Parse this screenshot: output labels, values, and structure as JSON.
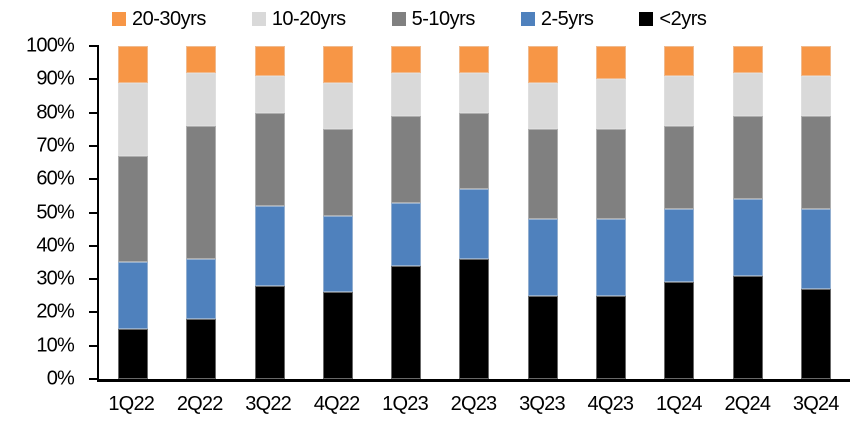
{
  "chart_data": {
    "type": "bar",
    "variant": "stacked-100-percent-column",
    "title": "",
    "xlabel": "",
    "ylabel": "",
    "ylim": [
      0,
      100
    ],
    "grid": false,
    "legend_position": "top",
    "background_color": "#ffffff",
    "axis_color": "#000000",
    "categories": [
      "1Q22",
      "2Q22",
      "3Q22",
      "4Q22",
      "1Q23",
      "2Q23",
      "3Q23",
      "4Q23",
      "1Q24",
      "2Q24",
      "3Q24"
    ],
    "series": [
      {
        "name": "<2yrs",
        "color": "#000000",
        "values": [
          15,
          18,
          28,
          26,
          34,
          36,
          25,
          25,
          29,
          31,
          27
        ]
      },
      {
        "name": "2-5yrs",
        "color": "#4F81BD",
        "values": [
          20,
          18,
          24,
          23,
          19,
          21,
          23,
          23,
          22,
          23,
          24
        ]
      },
      {
        "name": "5-10yrs",
        "color": "#808080",
        "values": [
          32,
          40,
          28,
          26,
          26,
          23,
          27,
          27,
          25,
          25,
          28
        ]
      },
      {
        "name": "10-20yrs",
        "color": "#D9D9D9",
        "values": [
          22,
          16,
          11,
          14,
          13,
          12,
          14,
          15,
          15,
          13,
          12
        ]
      },
      {
        "name": "20-30yrs",
        "color": "#F79646",
        "values": [
          11,
          8,
          9,
          11,
          8,
          8,
          11,
          10,
          9,
          8,
          9
        ]
      }
    ],
    "stack_order_bottom_to_top": [
      "<2yrs",
      "2-5yrs",
      "5-10yrs",
      "10-20yrs",
      "20-30yrs"
    ],
    "legend_order": [
      "20-30yrs",
      "10-20yrs",
      "5-10yrs",
      "2-5yrs",
      "<2yrs"
    ],
    "y_ticks": [
      "100%",
      "90%",
      "80%",
      "70%",
      "60%",
      "50%",
      "40%",
      "30%",
      "20%",
      "10%",
      "0%"
    ]
  }
}
